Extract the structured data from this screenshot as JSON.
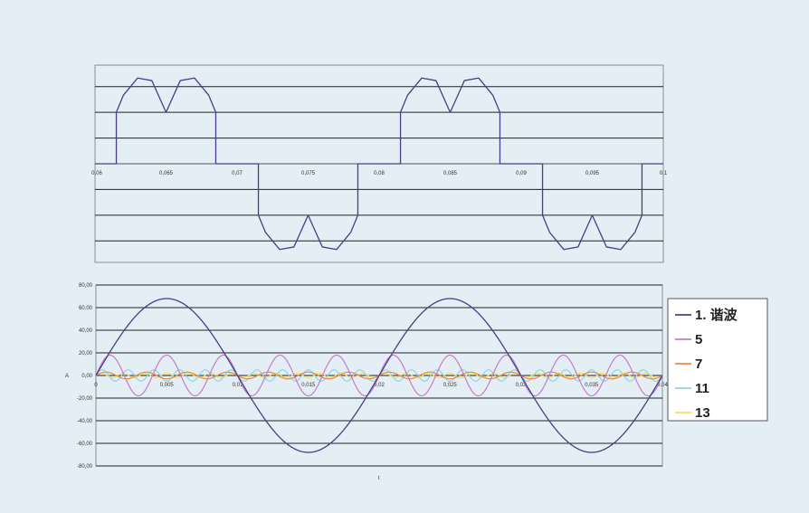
{
  "chart_data": [
    {
      "type": "line",
      "title": "",
      "xlabel": "",
      "ylabel": "",
      "xlim": [
        0.06,
        0.1
      ],
      "ylim": [
        -1.15,
        1.15
      ],
      "x_ticks": [
        "0,06",
        "0,065",
        "0,07",
        "0,075",
        "0,08",
        "0,085",
        "0,09",
        "0,095",
        "0,1"
      ],
      "y_ticks": [],
      "grid": true,
      "legend": "none",
      "series": [
        {
          "color": "#4a3f86",
          "description": "rectified-style phase current pulses with a notch in each lobe; positive pulses 0.0615–0.0685 and 0.0815–0.0885, negative pulses 0.0715–0.0785 and 0.0915–0.0985",
          "period": 0.02,
          "points": [
            [
              0.06,
              0
            ],
            [
              0.0615,
              0
            ],
            [
              0.0615,
              0.6
            ],
            [
              0.062,
              0.8
            ],
            [
              0.063,
              1.0
            ],
            [
              0.064,
              0.97
            ],
            [
              0.065,
              0.6
            ],
            [
              0.066,
              0.97
            ],
            [
              0.067,
              1.0
            ],
            [
              0.068,
              0.8
            ],
            [
              0.0685,
              0.6
            ],
            [
              0.0685,
              0
            ],
            [
              0.0715,
              0
            ],
            [
              0.0715,
              -0.6
            ],
            [
              0.072,
              -0.8
            ],
            [
              0.073,
              -1.0
            ],
            [
              0.074,
              -0.97
            ],
            [
              0.075,
              -0.6
            ],
            [
              0.076,
              -0.97
            ],
            [
              0.077,
              -1.0
            ],
            [
              0.078,
              -0.8
            ],
            [
              0.0785,
              -0.6
            ],
            [
              0.0785,
              0
            ],
            [
              0.0815,
              0
            ],
            [
              0.0815,
              0.6
            ],
            [
              0.082,
              0.8
            ],
            [
              0.083,
              1.0
            ],
            [
              0.084,
              0.97
            ],
            [
              0.085,
              0.6
            ],
            [
              0.086,
              0.97
            ],
            [
              0.087,
              1.0
            ],
            [
              0.088,
              0.8
            ],
            [
              0.0885,
              0.6
            ],
            [
              0.0885,
              0
            ],
            [
              0.0915,
              0
            ],
            [
              0.0915,
              -0.6
            ],
            [
              0.092,
              -0.8
            ],
            [
              0.093,
              -1.0
            ],
            [
              0.094,
              -0.97
            ],
            [
              0.095,
              -0.6
            ],
            [
              0.096,
              -0.97
            ],
            [
              0.097,
              -1.0
            ],
            [
              0.098,
              -0.8
            ],
            [
              0.0985,
              -0.6
            ],
            [
              0.0985,
              0
            ],
            [
              0.1,
              0
            ]
          ]
        }
      ]
    },
    {
      "type": "line",
      "title": "",
      "xlabel": "t",
      "ylabel": "A",
      "xlim": [
        0,
        0.04
      ],
      "ylim": [
        -80,
        80
      ],
      "x_ticks": [
        "0",
        "0,005",
        "0,01",
        "0,015",
        "0,02",
        "0,025",
        "0,03",
        "0,035",
        "0,04"
      ],
      "y_ticks": [
        "80,00",
        "60,00",
        "40,00",
        "20,00",
        "0,00",
        "-20,00",
        "-40,00",
        "-60,00",
        "-80,00"
      ],
      "grid": true,
      "legend": "right",
      "base_frequency_hz": 50,
      "series": [
        {
          "name": "1. 谐波",
          "harmonic": 1,
          "amplitude": 68,
          "color": "#4a3f86"
        },
        {
          "name": "5",
          "harmonic": 5,
          "amplitude": 18,
          "color": "#c77cc9"
        },
        {
          "name": "7",
          "harmonic": 7,
          "amplitude": 3,
          "color": "#f08a3c"
        },
        {
          "name": "11",
          "harmonic": 11,
          "amplitude": 5,
          "color": "#8cd4ea"
        },
        {
          "name": "13",
          "harmonic": 13,
          "amplitude": 2,
          "color": "#f2e15a"
        }
      ]
    }
  ]
}
